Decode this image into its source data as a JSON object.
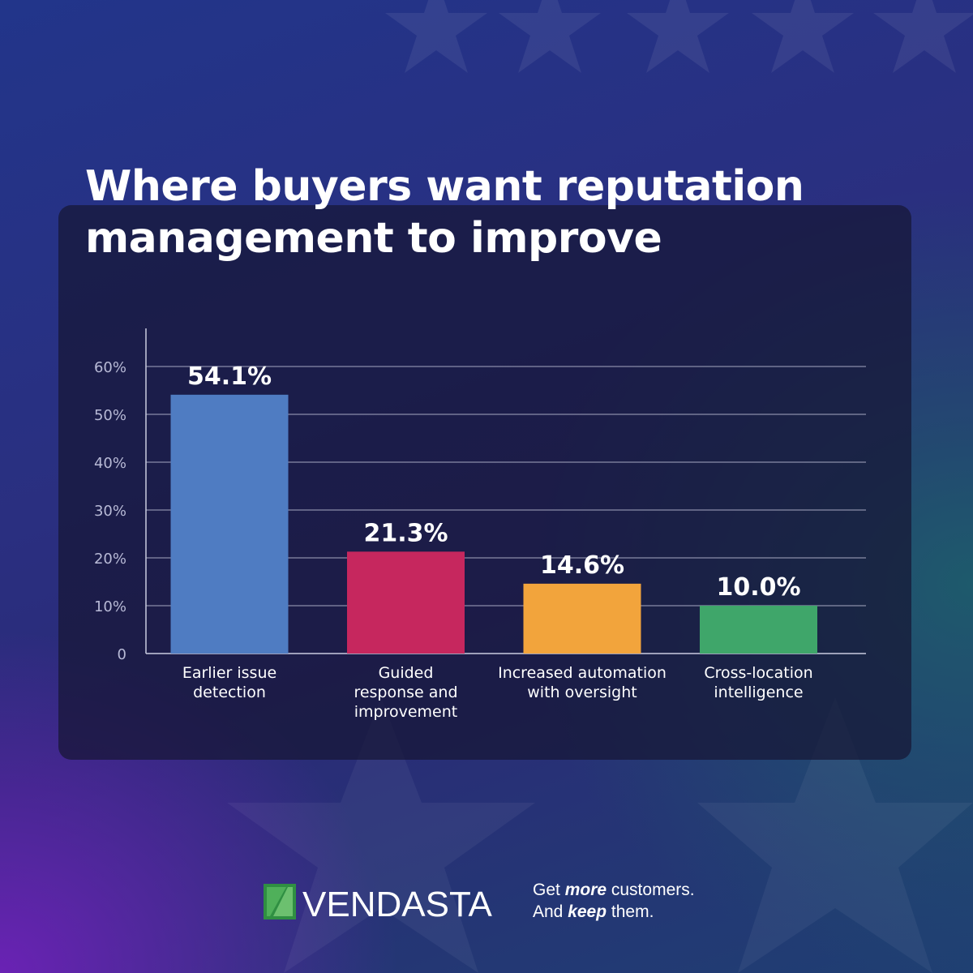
{
  "title": "Where buyers want reputation management to improve",
  "chart_data": {
    "type": "bar",
    "title": "Where buyers want reputation management to improve",
    "categories": [
      [
        "Earlier issue",
        "detection"
      ],
      [
        "Guided",
        "response and",
        "improvement"
      ],
      [
        "Increased automation",
        "with oversight"
      ],
      [
        "Cross-location",
        "intelligence"
      ]
    ],
    "values": [
      54.1,
      21.3,
      14.6,
      10.0
    ],
    "value_labels": [
      "54.1%",
      "21.3%",
      "14.6%",
      "10.0%"
    ],
    "colors": [
      "#4f7cc2",
      "#c6275e",
      "#f2a43c",
      "#3fa66a"
    ],
    "y_ticks": [
      0,
      10,
      20,
      30,
      40,
      50,
      60
    ],
    "y_tick_labels": [
      "0",
      "10%",
      "20%",
      "30%",
      "40%",
      "50%",
      "60%"
    ],
    "ylim": [
      0,
      60
    ],
    "grid": true,
    "legend": "none",
    "xlabel": "",
    "ylabel": ""
  },
  "footer": {
    "brand": "VENDASTA",
    "tagline_line1_pre": "Get ",
    "tagline_line1_em": "more",
    "tagline_line1_post": " customers.",
    "tagline_line2_pre": "And ",
    "tagline_line2_em": "keep",
    "tagline_line2_post": " them."
  },
  "colors": {
    "grid": "#c9cbe0",
    "axis_text": "#b8bad6",
    "logo_green": "#3a9a48"
  }
}
